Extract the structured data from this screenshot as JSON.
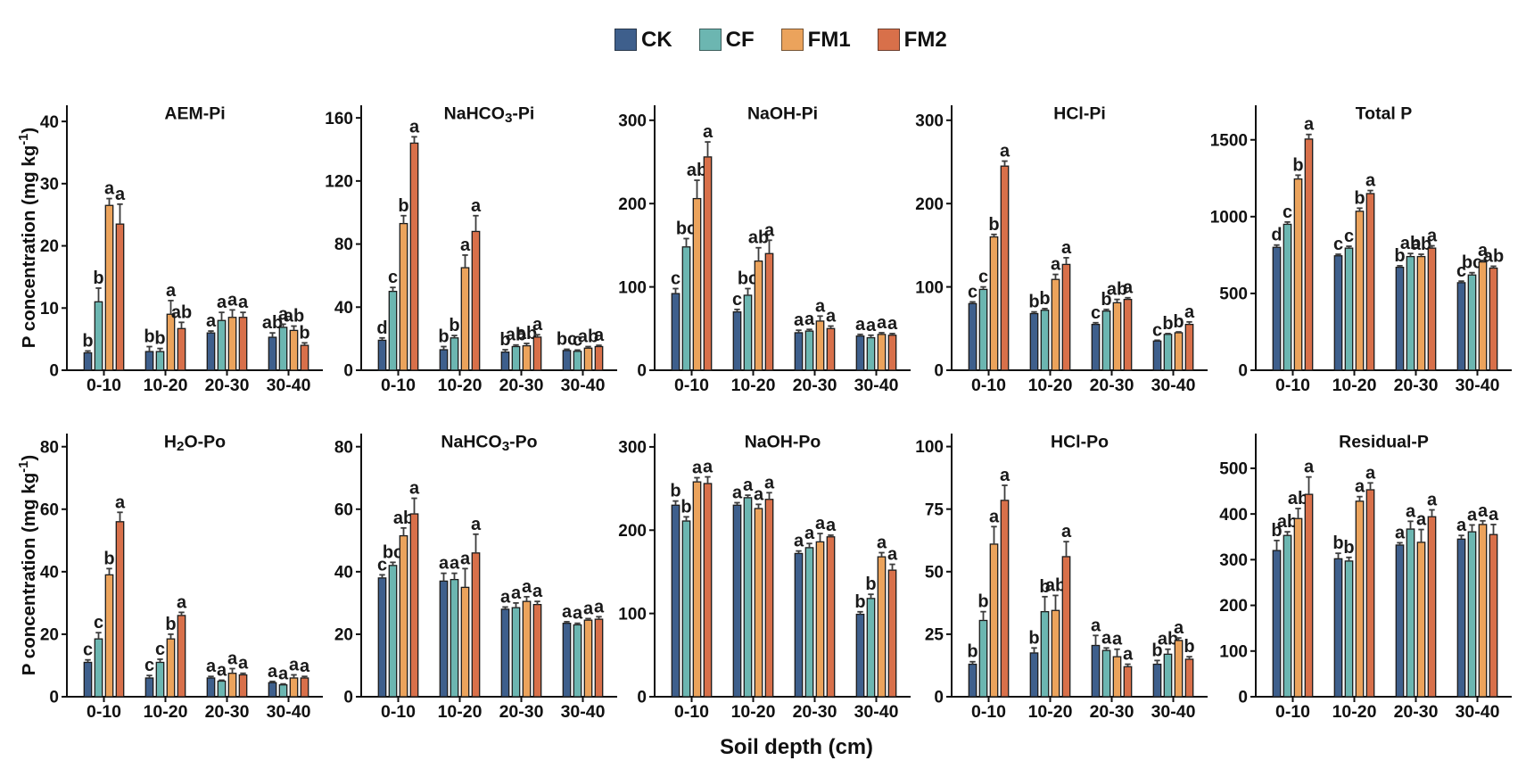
{
  "figure": {
    "kind": "grouped-bar-chart-grid",
    "rows": 2,
    "cols": 5
  },
  "legend": {
    "items": [
      {
        "label": "CK",
        "color": "#3e5f8c"
      },
      {
        "label": "CF",
        "color": "#6cb6b1"
      },
      {
        "label": "FM1",
        "color": "#eba35c"
      },
      {
        "label": "FM2",
        "color": "#d8704a"
      }
    ]
  },
  "axes": {
    "y_label": "P concentration (mg kg⁻¹)",
    "x_label": "Soil depth (cm)"
  },
  "style": {
    "bar_stroke": "#1a1a1a",
    "error_color": "#3c3c3c",
    "axis_color": "#111111",
    "text_color": "#111111",
    "letter_color": "#1a1a1a"
  },
  "chart_data": [
    {
      "type": "bar",
      "title": "AEM-Pi",
      "ylim": [
        0,
        42.6
      ],
      "yticks": [
        0,
        10,
        20,
        30,
        40
      ],
      "categories": [
        "0-10",
        "10-20",
        "20-30",
        "30-40"
      ],
      "series": [
        {
          "name": "CK",
          "values": [
            2.8,
            3.0,
            6.0,
            5.3
          ],
          "errors": [
            0.3,
            0.8,
            0.3,
            0.7
          ],
          "letters": [
            "b",
            "b",
            "a",
            "ab"
          ]
        },
        {
          "name": "CF",
          "values": [
            11.0,
            3.0,
            8.0,
            6.9
          ],
          "errors": [
            2.2,
            0.5,
            1.3,
            0.5
          ],
          "letters": [
            "b",
            "b",
            "a",
            "a"
          ]
        },
        {
          "name": "FM1",
          "values": [
            26.5,
            9.0,
            8.5,
            6.4
          ],
          "errors": [
            1.1,
            2.2,
            1.2,
            0.7
          ],
          "letters": [
            "a",
            "a",
            "a",
            "ab"
          ]
        },
        {
          "name": "FM2",
          "values": [
            23.5,
            6.7,
            8.5,
            4.0
          ],
          "errors": [
            3.2,
            1.0,
            0.8,
            0.4
          ],
          "letters": [
            "a",
            "ab",
            "a",
            "b"
          ]
        }
      ]
    },
    {
      "type": "bar",
      "title": "NaHCO₃-Pi",
      "ylim": [
        0,
        168
      ],
      "yticks": [
        0,
        40,
        80,
        120,
        160
      ],
      "categories": [
        "0-10",
        "10-20",
        "20-30",
        "30-40"
      ],
      "series": [
        {
          "name": "CK",
          "values": [
            19,
            13,
            11.5,
            12.5
          ],
          "errors": [
            1.5,
            2.0,
            1.5,
            0.8
          ],
          "letters": [
            "d",
            "b",
            "b",
            "bc"
          ]
        },
        {
          "name": "CF",
          "values": [
            50,
            20.5,
            15,
            12
          ],
          "errors": [
            2.5,
            1.5,
            1.0,
            0.8
          ],
          "letters": [
            "c",
            "b",
            "ab",
            "c"
          ]
        },
        {
          "name": "FM1",
          "values": [
            93,
            65,
            15.5,
            14
          ],
          "errors": [
            5.0,
            8.0,
            1.5,
            1.0
          ],
          "letters": [
            "b",
            "a",
            "ab",
            "ab"
          ]
        },
        {
          "name": "FM2",
          "values": [
            144,
            88,
            21,
            15
          ],
          "errors": [
            4.0,
            10.0,
            1.5,
            0.8
          ],
          "letters": [
            "a",
            "a",
            "a",
            "a"
          ]
        }
      ]
    },
    {
      "type": "bar",
      "title": "NaOH-Pi",
      "ylim": [
        0,
        318
      ],
      "yticks": [
        0,
        100,
        200,
        300
      ],
      "categories": [
        "0-10",
        "10-20",
        "20-30",
        "30-40"
      ],
      "series": [
        {
          "name": "CK",
          "values": [
            92,
            70,
            45,
            41
          ],
          "errors": [
            6,
            3,
            3,
            2
          ],
          "letters": [
            "c",
            "c",
            "a",
            "a"
          ]
        },
        {
          "name": "CF",
          "values": [
            148,
            90,
            47,
            39
          ],
          "errors": [
            10,
            8,
            2,
            3
          ],
          "letters": [
            "bc",
            "bc",
            "a",
            "a"
          ]
        },
        {
          "name": "FM1",
          "values": [
            206,
            131,
            59,
            43
          ],
          "errors": [
            22,
            16,
            6,
            2
          ],
          "letters": [
            "ab",
            "ab",
            "a",
            "a"
          ]
        },
        {
          "name": "FM2",
          "values": [
            256,
            140,
            50,
            42
          ],
          "errors": [
            18,
            16,
            3,
            2
          ],
          "letters": [
            "a",
            "a",
            "a",
            "a"
          ]
        }
      ]
    },
    {
      "type": "bar",
      "title": "HCl-Pi",
      "ylim": [
        0,
        318
      ],
      "yticks": [
        0,
        100,
        200,
        300
      ],
      "categories": [
        "0-10",
        "10-20",
        "20-30",
        "30-40"
      ],
      "series": [
        {
          "name": "CK",
          "values": [
            80,
            68,
            55,
            35
          ],
          "errors": [
            2,
            2,
            2,
            1
          ],
          "letters": [
            "c",
            "b",
            "c",
            "c"
          ]
        },
        {
          "name": "CF",
          "values": [
            97,
            72,
            71,
            43
          ],
          "errors": [
            3,
            2,
            2,
            1
          ],
          "letters": [
            "c",
            "b",
            "b",
            "b"
          ]
        },
        {
          "name": "FM1",
          "values": [
            160,
            109,
            81,
            45
          ],
          "errors": [
            3,
            6,
            4,
            1
          ],
          "letters": [
            "b",
            "a",
            "ab",
            "b"
          ]
        },
        {
          "name": "FM2",
          "values": [
            245,
            127,
            85,
            55
          ],
          "errors": [
            6,
            8,
            2,
            3
          ],
          "letters": [
            "a",
            "a",
            "a",
            "a"
          ]
        }
      ]
    },
    {
      "type": "bar",
      "title": "Total P",
      "ylim": [
        0,
        1725
      ],
      "yticks": [
        0,
        500,
        1000,
        1500
      ],
      "categories": [
        "0-10",
        "10-20",
        "20-30",
        "30-40"
      ],
      "series": [
        {
          "name": "CK",
          "values": [
            800,
            745,
            670,
            570
          ],
          "errors": [
            15,
            10,
            10,
            10
          ],
          "letters": [
            "d",
            "c",
            "b",
            "c"
          ]
        },
        {
          "name": "CF",
          "values": [
            950,
            795,
            740,
            620
          ],
          "errors": [
            15,
            12,
            20,
            15
          ],
          "letters": [
            "c",
            "c",
            "ab",
            "bc"
          ]
        },
        {
          "name": "FM1",
          "values": [
            1245,
            1035,
            740,
            705
          ],
          "errors": [
            25,
            20,
            15,
            10
          ],
          "letters": [
            "b",
            "b",
            "ab",
            "a"
          ]
        },
        {
          "name": "FM2",
          "values": [
            1505,
            1150,
            795,
            665
          ],
          "errors": [
            30,
            20,
            15,
            12
          ],
          "letters": [
            "a",
            "a",
            "a",
            "ab"
          ]
        }
      ]
    },
    {
      "type": "bar",
      "title": "H₂O-Po",
      "ylim": [
        0,
        84.2
      ],
      "yticks": [
        0,
        20,
        40,
        60,
        80
      ],
      "categories": [
        "0-10",
        "10-20",
        "20-30",
        "30-40"
      ],
      "series": [
        {
          "name": "CK",
          "values": [
            11,
            6,
            6,
            4.5
          ],
          "errors": [
            0.8,
            0.8,
            0.5,
            0.4
          ],
          "letters": [
            "c",
            "c",
            "a",
            "a"
          ]
        },
        {
          "name": "CF",
          "values": [
            18.5,
            11,
            5,
            3.8
          ],
          "errors": [
            2.0,
            1.0,
            0.3,
            0.3
          ],
          "letters": [
            "c",
            "c",
            "a",
            "a"
          ]
        },
        {
          "name": "FM1",
          "values": [
            39,
            18.5,
            7.5,
            6
          ],
          "errors": [
            2.0,
            1.5,
            1.5,
            1.0
          ],
          "letters": [
            "b",
            "b",
            "a",
            "a"
          ]
        },
        {
          "name": "FM2",
          "values": [
            56,
            26,
            7,
            6
          ],
          "errors": [
            3.0,
            1.0,
            0.5,
            0.5
          ],
          "letters": [
            "a",
            "a",
            "a",
            "a"
          ]
        }
      ]
    },
    {
      "type": "bar",
      "title": "NaHCO₃-Po",
      "ylim": [
        0,
        84.2
      ],
      "yticks": [
        0,
        20,
        40,
        60,
        80
      ],
      "categories": [
        "0-10",
        "10-20",
        "20-30",
        "30-40"
      ],
      "series": [
        {
          "name": "CK",
          "values": [
            38,
            37,
            28,
            23.5
          ],
          "errors": [
            1.0,
            2.5,
            0.7,
            0.5
          ],
          "letters": [
            "c",
            "a",
            "a",
            "a"
          ]
        },
        {
          "name": "CF",
          "values": [
            42,
            37.5,
            28.5,
            23
          ],
          "errors": [
            1.0,
            2.0,
            1.5,
            0.5
          ],
          "letters": [
            "bc",
            "a",
            "a",
            "a"
          ]
        },
        {
          "name": "FM1",
          "values": [
            51.5,
            35,
            30.5,
            24.5
          ],
          "errors": [
            2.5,
            6.0,
            1.5,
            0.5
          ],
          "letters": [
            "ab",
            "a",
            "a",
            "a"
          ]
        },
        {
          "name": "FM2",
          "values": [
            58.5,
            46,
            29.5,
            24.8
          ],
          "errors": [
            5.0,
            6.0,
            1.0,
            0.8
          ],
          "letters": [
            "a",
            "a",
            "a",
            "a"
          ]
        }
      ]
    },
    {
      "type": "bar",
      "title": "NaOH-Po",
      "ylim": [
        0,
        316
      ],
      "yticks": [
        0,
        100,
        200,
        300
      ],
      "categories": [
        "0-10",
        "10-20",
        "20-30",
        "30-40"
      ],
      "series": [
        {
          "name": "CK",
          "values": [
            230,
            230,
            172,
            99
          ],
          "errors": [
            5,
            3,
            3,
            3
          ],
          "letters": [
            "b",
            "a",
            "a",
            "b"
          ]
        },
        {
          "name": "CF",
          "values": [
            211,
            239,
            179,
            118
          ],
          "errors": [
            5,
            3,
            5,
            5
          ],
          "letters": [
            "b",
            "a",
            "a",
            "b"
          ]
        },
        {
          "name": "FM1",
          "values": [
            258,
            226,
            186,
            168
          ],
          "errors": [
            5,
            5,
            10,
            5
          ],
          "letters": [
            "a",
            "a",
            "a",
            "a"
          ]
        },
        {
          "name": "FM2",
          "values": [
            256,
            237,
            192,
            152
          ],
          "errors": [
            8,
            8,
            2,
            7
          ],
          "letters": [
            "a",
            "a",
            "a",
            "a"
          ]
        }
      ]
    },
    {
      "type": "bar",
      "title": "HCl-Po",
      "ylim": [
        0,
        105.2
      ],
      "yticks": [
        0,
        25,
        50,
        75,
        100
      ],
      "categories": [
        "0-10",
        "10-20",
        "20-30",
        "30-40"
      ],
      "series": [
        {
          "name": "CK",
          "values": [
            13,
            17.5,
            20.5,
            13
          ],
          "errors": [
            1.0,
            2.0,
            4.0,
            1.5
          ],
          "letters": [
            "b",
            "b",
            "a",
            "b"
          ]
        },
        {
          "name": "CF",
          "values": [
            30.5,
            34,
            18.5,
            17
          ],
          "errors": [
            3.5,
            6.0,
            1.0,
            2.0
          ],
          "letters": [
            "b",
            "b",
            "a",
            "ab"
          ]
        },
        {
          "name": "FM1",
          "values": [
            61,
            34.5,
            16,
            22.5
          ],
          "errors": [
            7.0,
            6.0,
            3.0,
            1.0
          ],
          "letters": [
            "a",
            "ab",
            "a",
            "a"
          ]
        },
        {
          "name": "FM2",
          "values": [
            78.5,
            56,
            12,
            15
          ],
          "errors": [
            6.0,
            6.0,
            1.0,
            1.0
          ],
          "letters": [
            "a",
            "a",
            "a",
            "b"
          ]
        }
      ]
    },
    {
      "type": "bar",
      "title": "Residual-P",
      "ylim": [
        0,
        576
      ],
      "yticks": [
        0,
        100,
        200,
        300,
        400,
        500
      ],
      "categories": [
        "0-10",
        "10-20",
        "20-30",
        "30-40"
      ],
      "series": [
        {
          "name": "CK",
          "values": [
            320,
            302,
            332,
            345
          ],
          "errors": [
            22,
            12,
            5,
            8
          ],
          "letters": [
            "b",
            "b",
            "a",
            "a"
          ]
        },
        {
          "name": "CF",
          "values": [
            353,
            297,
            367,
            361
          ],
          "errors": [
            8,
            8,
            17,
            15
          ],
          "letters": [
            "ab",
            "b",
            "a",
            "a"
          ]
        },
        {
          "name": "FM1",
          "values": [
            390,
            428,
            338,
            377
          ],
          "errors": [
            22,
            10,
            28,
            8
          ],
          "letters": [
            "ab",
            "a",
            "a",
            "a"
          ]
        },
        {
          "name": "FM2",
          "values": [
            443,
            453,
            394,
            355
          ],
          "errors": [
            38,
            15,
            15,
            22
          ],
          "letters": [
            "a",
            "a",
            "a",
            "a"
          ]
        }
      ]
    }
  ]
}
